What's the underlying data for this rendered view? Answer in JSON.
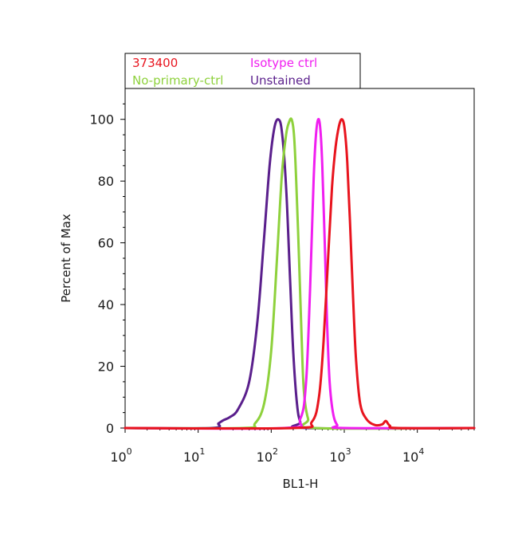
{
  "chart_data": {
    "type": "line",
    "xlabel": "BL1-H",
    "ylabel": "Percent of Max",
    "x_scale": "log",
    "xlim": [
      1,
      60000
    ],
    "ylim": [
      0,
      110
    ],
    "x_ticks": [
      1,
      10,
      100,
      1000,
      10000
    ],
    "x_tick_labels": [
      {
        "base": "10",
        "exp": "0"
      },
      {
        "base": "10",
        "exp": "1"
      },
      {
        "base": "10",
        "exp": "2"
      },
      {
        "base": "10",
        "exp": "3"
      },
      {
        "base": "10",
        "exp": "4"
      }
    ],
    "y_ticks": [
      0,
      20,
      40,
      60,
      80,
      100
    ],
    "y_tick_labels": [
      "0",
      "20",
      "40",
      "60",
      "80",
      "100"
    ],
    "legend_position": "top",
    "grid": false,
    "series": [
      {
        "name": "373400",
        "color": "#e8141e",
        "x": [
          1,
          200,
          360,
          450,
          520,
          600,
          680,
          760,
          850,
          930,
          1010,
          1100,
          1200,
          1320,
          1450,
          1650,
          2000,
          2600,
          3300,
          3700,
          4200,
          5500,
          60000
        ],
        "y": [
          0,
          0,
          2,
          10,
          28,
          55,
          78,
          91,
          98,
          100,
          97,
          86,
          66,
          42,
          22,
          8,
          3,
          1,
          1.2,
          2.3,
          0.8,
          0,
          0
        ]
      },
      {
        "name": "Isotype ctrl",
        "color": "#f01ef0",
        "x": [
          1,
          150,
          250,
          300,
          340,
          380,
          410,
          440,
          470,
          500,
          540,
          580,
          630,
          700,
          800,
          1000,
          60000
        ],
        "y": [
          0,
          0,
          3,
          15,
          45,
          80,
          95,
          100,
          97,
          85,
          60,
          35,
          15,
          5,
          1,
          0,
          0
        ]
      },
      {
        "name": "No-primary-ctrl",
        "color": "#8ed13c",
        "x": [
          1,
          40,
          60,
          80,
          100,
          120,
          140,
          160,
          175,
          190,
          205,
          220,
          240,
          260,
          280,
          320,
          400,
          60000
        ],
        "y": [
          0,
          0,
          1.5,
          8,
          25,
          55,
          82,
          95,
          99,
          100,
          95,
          80,
          55,
          30,
          12,
          3,
          0,
          0
        ]
      },
      {
        "name": "Unstained",
        "color": "#5a1f8c",
        "x": [
          1,
          15,
          19,
          22,
          27,
          35,
          50,
          65,
          80,
          95,
          110,
          125,
          140,
          160,
          180,
          200,
          225,
          250,
          300,
          60000
        ],
        "y": [
          0,
          0,
          1.5,
          2.5,
          3.5,
          6,
          15,
          35,
          62,
          85,
          97,
          100,
          96,
          78,
          50,
          25,
          8,
          2,
          0,
          0
        ]
      }
    ]
  }
}
